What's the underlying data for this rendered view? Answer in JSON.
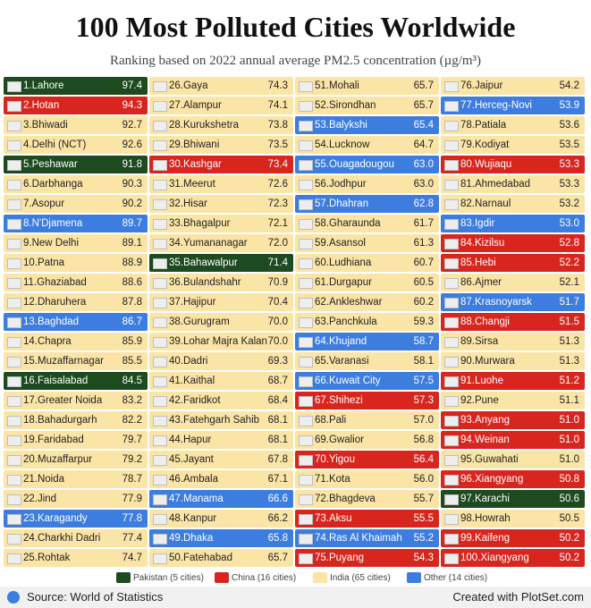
{
  "title": "100 Most Polluted Cities Worldwide",
  "subtitle": "Ranking based on 2022 annual average PM2.5 concentration (µg/m³)",
  "rows": [
    {
      "label": "1.Lahore",
      "value": "97.4",
      "color": "#1d4a1e"
    },
    {
      "label": "2.Hotan",
      "value": "94.3",
      "color": "#d8261f"
    },
    {
      "label": "3.Bhiwadi",
      "value": "92.7",
      "color": "#fbe5a6"
    },
    {
      "label": "4.Delhi (NCT)",
      "value": "92.6",
      "color": "#fbe5a6"
    },
    {
      "label": "5.Peshawar",
      "value": "91.8",
      "color": "#1d4a1e"
    },
    {
      "label": "6.Darbhanga",
      "value": "90.3",
      "color": "#fbe5a6"
    },
    {
      "label": "7.Asopur",
      "value": "90.2",
      "color": "#fbe5a6"
    },
    {
      "label": "8.N'Djamena",
      "value": "89.7",
      "color": "#3d7de0"
    },
    {
      "label": "9.New Delhi",
      "value": "89.1",
      "color": "#fbe5a6"
    },
    {
      "label": "10.Patna",
      "value": "88.9",
      "color": "#fbe5a6"
    },
    {
      "label": "11.Ghaziabad",
      "value": "88.6",
      "color": "#fbe5a6"
    },
    {
      "label": "12.Dharuhera",
      "value": "87.8",
      "color": "#fbe5a6"
    },
    {
      "label": "13.Baghdad",
      "value": "86.7",
      "color": "#3d7de0"
    },
    {
      "label": "14.Chapra",
      "value": "85.9",
      "color": "#fbe5a6"
    },
    {
      "label": "15.Muzaffarnagar",
      "value": "85.5",
      "color": "#fbe5a6"
    },
    {
      "label": "16.Faisalabad",
      "value": "84.5",
      "color": "#1d4a1e"
    },
    {
      "label": "17.Greater Noida",
      "value": "83.2",
      "color": "#fbe5a6"
    },
    {
      "label": "18.Bahadurgarh",
      "value": "82.2",
      "color": "#fbe5a6"
    },
    {
      "label": "19.Faridabad",
      "value": "79.7",
      "color": "#fbe5a6"
    },
    {
      "label": "20.Muzaffarpur",
      "value": "79.2",
      "color": "#fbe5a6"
    },
    {
      "label": "21.Noida",
      "value": "78.7",
      "color": "#fbe5a6"
    },
    {
      "label": "22.Jind",
      "value": "77.9",
      "color": "#fbe5a6"
    },
    {
      "label": "23.Karagandy",
      "value": "77.8",
      "color": "#3d7de0"
    },
    {
      "label": "24.Charkhi Dadri",
      "value": "77.4",
      "color": "#fbe5a6"
    },
    {
      "label": "25.Rohtak",
      "value": "74.7",
      "color": "#fbe5a6"
    },
    {
      "label": "26.Gaya",
      "value": "74.3",
      "color": "#fbe5a6"
    },
    {
      "label": "27.Alampur",
      "value": "74.1",
      "color": "#fbe5a6"
    },
    {
      "label": "28.Kurukshetra",
      "value": "73.8",
      "color": "#fbe5a6"
    },
    {
      "label": "29.Bhiwani",
      "value": "73.5",
      "color": "#fbe5a6"
    },
    {
      "label": "30.Kashgar",
      "value": "73.4",
      "color": "#d8261f"
    },
    {
      "label": "31.Meerut",
      "value": "72.6",
      "color": "#fbe5a6"
    },
    {
      "label": "32.Hisar",
      "value": "72.3",
      "color": "#fbe5a6"
    },
    {
      "label": "33.Bhagalpur",
      "value": "72.1",
      "color": "#fbe5a6"
    },
    {
      "label": "34.Yumananagar",
      "value": "72.0",
      "color": "#fbe5a6"
    },
    {
      "label": "35.Bahawalpur",
      "value": "71.4",
      "color": "#1d4a1e"
    },
    {
      "label": "36.Bulandshahr",
      "value": "70.9",
      "color": "#fbe5a6"
    },
    {
      "label": "37.Hajipur",
      "value": "70.4",
      "color": "#fbe5a6"
    },
    {
      "label": "38.Gurugram",
      "value": "70.0",
      "color": "#fbe5a6"
    },
    {
      "label": "39.Lohar Majra Kalan",
      "value": "70.0",
      "color": "#fbe5a6"
    },
    {
      "label": "40.Dadri",
      "value": "69.3",
      "color": "#fbe5a6"
    },
    {
      "label": "41.Kaithal",
      "value": "68.7",
      "color": "#fbe5a6"
    },
    {
      "label": "42.Faridkot",
      "value": "68.4",
      "color": "#fbe5a6"
    },
    {
      "label": "43.Fatehgarh Sahib",
      "value": "68.1",
      "color": "#fbe5a6"
    },
    {
      "label": "44.Hapur",
      "value": "68.1",
      "color": "#fbe5a6"
    },
    {
      "label": "45.Jayant",
      "value": "67.8",
      "color": "#fbe5a6"
    },
    {
      "label": "46.Ambala",
      "value": "67.1",
      "color": "#fbe5a6"
    },
    {
      "label": "47.Manama",
      "value": "66.6",
      "color": "#3d7de0"
    },
    {
      "label": "48.Kanpur",
      "value": "66.2",
      "color": "#fbe5a6"
    },
    {
      "label": "49.Dhaka",
      "value": "65.8",
      "color": "#3d7de0"
    },
    {
      "label": "50.Fatehabad",
      "value": "65.7",
      "color": "#fbe5a6"
    },
    {
      "label": "51.Mohali",
      "value": "65.7",
      "color": "#fbe5a6"
    },
    {
      "label": "52.Sirondhan",
      "value": "65.7",
      "color": "#fbe5a6"
    },
    {
      "label": "53.Balykshi",
      "value": "65.4",
      "color": "#3d7de0"
    },
    {
      "label": "54.Lucknow",
      "value": "64.7",
      "color": "#fbe5a6"
    },
    {
      "label": "55.Ouagadougou",
      "value": "63.0",
      "color": "#3d7de0"
    },
    {
      "label": "56.Jodhpur",
      "value": "63.0",
      "color": "#fbe5a6"
    },
    {
      "label": "57.Dhahran",
      "value": "62.8",
      "color": "#3d7de0"
    },
    {
      "label": "58.Gharaunda",
      "value": "61.7",
      "color": "#fbe5a6"
    },
    {
      "label": "59.Asansol",
      "value": "61.3",
      "color": "#fbe5a6"
    },
    {
      "label": "60.Ludhiana",
      "value": "60.7",
      "color": "#fbe5a6"
    },
    {
      "label": "61.Durgapur",
      "value": "60.5",
      "color": "#fbe5a6"
    },
    {
      "label": "62.Ankleshwar",
      "value": "60.2",
      "color": "#fbe5a6"
    },
    {
      "label": "63.Panchkula",
      "value": "59.3",
      "color": "#fbe5a6"
    },
    {
      "label": "64.Khujand",
      "value": "58.7",
      "color": "#3d7de0"
    },
    {
      "label": "65.Varanasi",
      "value": "58.1",
      "color": "#fbe5a6"
    },
    {
      "label": "66.Kuwait City",
      "value": "57.5",
      "color": "#3d7de0"
    },
    {
      "label": "67.Shihezi",
      "value": "57.3",
      "color": "#d8261f"
    },
    {
      "label": "68.Pali",
      "value": "57.0",
      "color": "#fbe5a6"
    },
    {
      "label": "69.Gwalior",
      "value": "56.8",
      "color": "#fbe5a6"
    },
    {
      "label": "70.Yigou",
      "value": "56.4",
      "color": "#d8261f"
    },
    {
      "label": "71.Kota",
      "value": "56.0",
      "color": "#fbe5a6"
    },
    {
      "label": "72.Bhagdeva",
      "value": "55.7",
      "color": "#fbe5a6"
    },
    {
      "label": "73.Aksu",
      "value": "55.5",
      "color": "#d8261f"
    },
    {
      "label": "74.Ras Al Khaimah",
      "value": "55.2",
      "color": "#3d7de0"
    },
    {
      "label": "75.Puyang",
      "value": "54.3",
      "color": "#d8261f"
    },
    {
      "label": "76.Jaipur",
      "value": "54.2",
      "color": "#fbe5a6"
    },
    {
      "label": "77.Herceg-Novi",
      "value": "53.9",
      "color": "#3d7de0"
    },
    {
      "label": "78.Patiala",
      "value": "53.6",
      "color": "#fbe5a6"
    },
    {
      "label": "79.Kodiyat",
      "value": "53.5",
      "color": "#fbe5a6"
    },
    {
      "label": "80.Wujiaqu",
      "value": "53.3",
      "color": "#d8261f"
    },
    {
      "label": "81.Ahmedabad",
      "value": "53.3",
      "color": "#fbe5a6"
    },
    {
      "label": "82.Narnaul",
      "value": "53.2",
      "color": "#fbe5a6"
    },
    {
      "label": "83.Igdir",
      "value": "53.0",
      "color": "#3d7de0"
    },
    {
      "label": "84.Kizilsu",
      "value": "52.8",
      "color": "#d8261f"
    },
    {
      "label": "85.Hebi",
      "value": "52.2",
      "color": "#d8261f"
    },
    {
      "label": "86.Ajmer",
      "value": "52.1",
      "color": "#fbe5a6"
    },
    {
      "label": "87.Krasnoyarsk",
      "value": "51.7",
      "color": "#3d7de0"
    },
    {
      "label": "88.Changji",
      "value": "51.5",
      "color": "#d8261f"
    },
    {
      "label": "89.Sirsa",
      "value": "51.3",
      "color": "#fbe5a6"
    },
    {
      "label": "90.Murwara",
      "value": "51.3",
      "color": "#fbe5a6"
    },
    {
      "label": "91.Luohe",
      "value": "51.2",
      "color": "#d8261f"
    },
    {
      "label": "92.Pune",
      "value": "51.1",
      "color": "#fbe5a6"
    },
    {
      "label": "93.Anyang",
      "value": "51.0",
      "color": "#d8261f"
    },
    {
      "label": "94.Weinan",
      "value": "51.0",
      "color": "#d8261f"
    },
    {
      "label": "95.Guwahati",
      "value": "51.0",
      "color": "#fbe5a6"
    },
    {
      "label": "96.Xiangyang",
      "value": "50.8",
      "color": "#d8261f"
    },
    {
      "label": "97.Karachi",
      "value": "50.6",
      "color": "#1d4a1e"
    },
    {
      "label": "98.Howrah",
      "value": "50.5",
      "color": "#fbe5a6"
    },
    {
      "label": "99.Kaifeng",
      "value": "50.2",
      "color": "#d8261f"
    },
    {
      "label": "100.Xiangyang",
      "value": "50.2",
      "color": "#d8261f"
    }
  ],
  "legend": [
    {
      "label": "Pakistan (5 cities)",
      "color": "#1d4a1e"
    },
    {
      "label": "China (16 cities)",
      "color": "#d8261f"
    },
    {
      "label": "India (65 cities)",
      "color": "#fbe5a6"
    },
    {
      "label": "Other (14 cities)",
      "color": "#3d7de0"
    }
  ],
  "footer": {
    "source": "Source: World of Statistics",
    "credit": "Created with PlotSet.com"
  }
}
